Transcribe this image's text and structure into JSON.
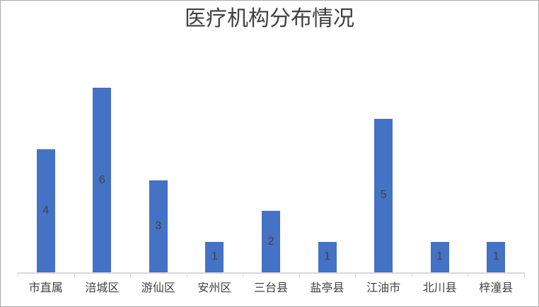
{
  "chart_data": {
    "type": "bar",
    "title": "医疗机构分布情况",
    "categories": [
      "市直属",
      "涪城区",
      "游仙区",
      "安州区",
      "三台县",
      "盐亭县",
      "江油市",
      "北川县",
      "梓潼县"
    ],
    "values": [
      4,
      6,
      3,
      1,
      2,
      1,
      5,
      1,
      1
    ],
    "data_labels": [
      "4",
      "6",
      "3",
      "1",
      "2",
      "1",
      "5",
      "1",
      "1"
    ],
    "data_label_position": "inside-center",
    "xlabel": "",
    "ylabel": "",
    "ylim": [
      0,
      7
    ],
    "grid": false,
    "legend": "none",
    "colors": {
      "bar_fill": "#4472c4",
      "axis_line": "#d9d9d9",
      "title_text": "#404040",
      "label_text": "#404040",
      "frame_border": "#a9a9a9",
      "background": "#ffffff"
    }
  }
}
